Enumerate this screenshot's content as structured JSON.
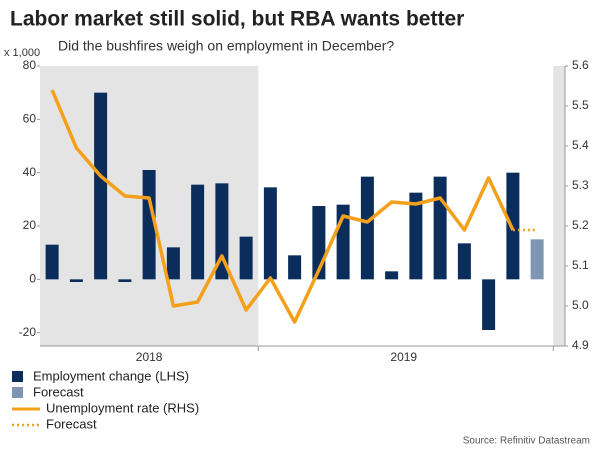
{
  "chart_data": {
    "type": "bar_line",
    "title": "Labor market still solid, but RBA wants better",
    "subtitle": "Did the bushfires weigh on employment in December?",
    "y_unit_label": "x 1,000",
    "source": "Source: Refinitiv Datastream",
    "year_labels": [
      "2018",
      "2019"
    ],
    "categories": [
      null,
      null,
      null,
      null,
      null,
      null,
      null,
      null,
      null,
      null,
      null,
      null,
      null,
      null,
      null,
      null,
      null,
      null,
      null,
      null,
      null
    ],
    "series": [
      {
        "name": "Employment change (LHS)",
        "color": "#0b2d5b",
        "kind": "bar",
        "axis": "y",
        "values": [
          13,
          -1,
          70,
          -1,
          41,
          12,
          35.5,
          36,
          16,
          34.5,
          9,
          27.5,
          28,
          38.5,
          3,
          32.5,
          38.5,
          13.5,
          -19,
          40,
          null
        ]
      },
      {
        "name": "Forecast",
        "color": "#7f96b3",
        "kind": "bar",
        "axis": "y",
        "values": [
          null,
          null,
          null,
          null,
          null,
          null,
          null,
          null,
          null,
          null,
          null,
          null,
          null,
          null,
          null,
          null,
          null,
          null,
          null,
          null,
          15
        ]
      },
      {
        "name": "Unemployment rate (RHS)",
        "color": "#f5a01a",
        "kind": "line",
        "axis": "y2",
        "values": [
          5.54,
          5.395,
          5.325,
          5.275,
          5.27,
          5.0,
          5.01,
          5.125,
          4.99,
          5.07,
          4.96,
          5.09,
          5.225,
          5.21,
          5.26,
          5.255,
          5.27,
          5.19,
          5.32,
          5.19,
          null
        ]
      },
      {
        "name": "Forecast",
        "color": "#f5a01a",
        "kind": "dotted",
        "axis": "y2",
        "values": [
          null,
          null,
          null,
          null,
          null,
          null,
          null,
          null,
          null,
          null,
          null,
          null,
          null,
          null,
          null,
          null,
          null,
          null,
          null,
          5.19,
          5.19
        ]
      }
    ],
    "ylim": [
      -25,
      80
    ],
    "yticks": [
      -20,
      0,
      20,
      40,
      60,
      80
    ],
    "y2lim": [
      4.9,
      5.6
    ],
    "y2ticks": [
      4.9,
      5.0,
      5.1,
      5.2,
      5.3,
      5.4,
      5.5,
      5.6
    ]
  }
}
